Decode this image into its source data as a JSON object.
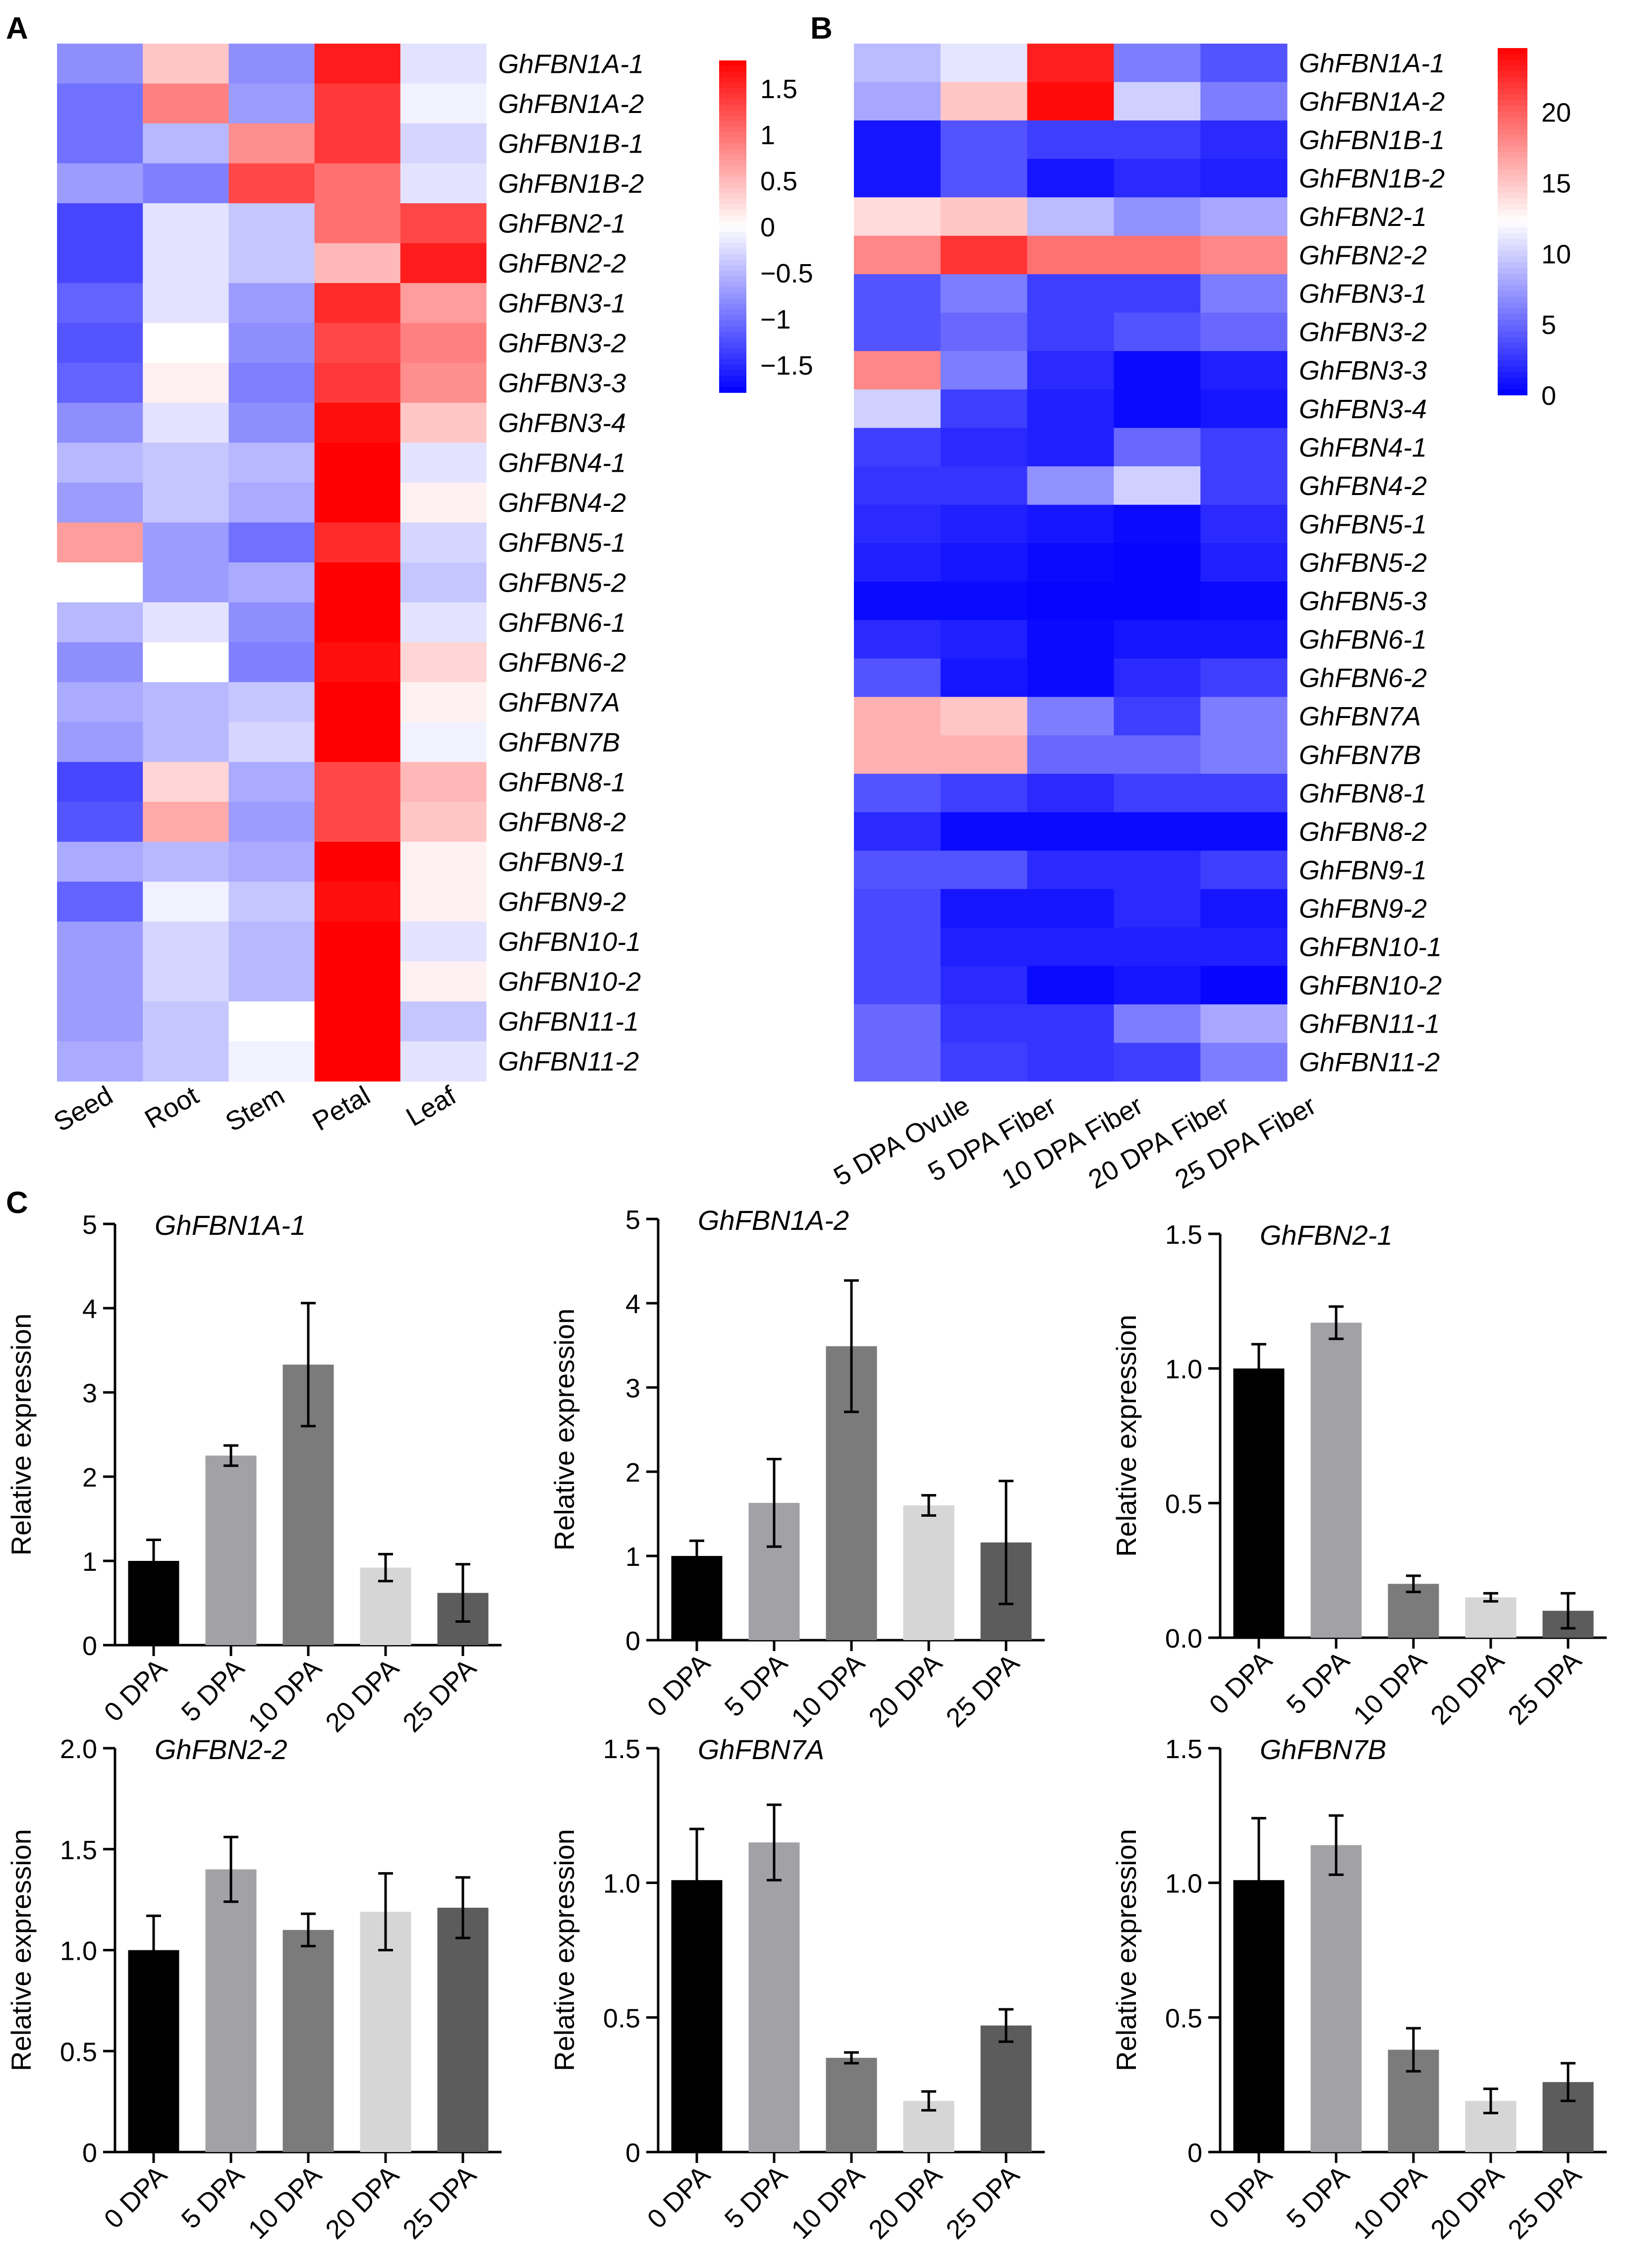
{
  "chart_data": [
    {
      "panel": "A",
      "type": "heatmap",
      "title": "",
      "columns": [
        "Seed",
        "Root",
        "Stem",
        "Petal",
        "Leaf"
      ],
      "rows": [
        "GhFBN1A-1",
        "GhFBN1A-2",
        "GhFBN1B-1",
        "GhFBN1B-2",
        "GhFBN2-1",
        "GhFBN2-2",
        "GhFBN3-1",
        "GhFBN3-2",
        "GhFBN3-3",
        "GhFBN3-4",
        "GhFBN4-1",
        "GhFBN4-2",
        "GhFBN5-1",
        "GhFBN5-2",
        "GhFBN6-1",
        "GhFBN6-2",
        "GhFBN7A",
        "GhFBN7B",
        "GhFBN8-1",
        "GhFBN8-2",
        "GhFBN9-1",
        "GhFBN9-2",
        "GhFBN10-1",
        "GhFBN10-2",
        "GhFBN11-1",
        "GhFBN11-2"
      ],
      "values": [
        [
          -0.8,
          0.4,
          -0.8,
          1.6,
          -0.2
        ],
        [
          -1.0,
          0.9,
          -0.7,
          1.4,
          -0.1
        ],
        [
          -1.0,
          -0.5,
          0.8,
          1.4,
          -0.3
        ],
        [
          -0.7,
          -0.9,
          1.3,
          1.0,
          -0.2
        ],
        [
          -1.3,
          -0.2,
          -0.4,
          1.0,
          1.3
        ],
        [
          -1.3,
          -0.2,
          -0.4,
          0.5,
          1.6
        ],
        [
          -1.1,
          -0.2,
          -0.7,
          1.5,
          0.7
        ],
        [
          -1.2,
          0.0,
          -0.8,
          1.3,
          0.9
        ],
        [
          -1.1,
          0.1,
          -0.9,
          1.4,
          0.8
        ],
        [
          -0.8,
          -0.2,
          -0.8,
          1.7,
          0.4
        ],
        [
          -0.5,
          -0.4,
          -0.5,
          1.8,
          -0.2
        ],
        [
          -0.7,
          -0.4,
          -0.6,
          1.8,
          0.1
        ],
        [
          0.7,
          -0.7,
          -1.0,
          1.5,
          -0.3
        ],
        [
          0.0,
          -0.7,
          -0.6,
          1.8,
          -0.4
        ],
        [
          -0.5,
          -0.2,
          -0.8,
          1.8,
          -0.2
        ],
        [
          -0.8,
          0.0,
          -0.9,
          1.7,
          0.3
        ],
        [
          -0.6,
          -0.5,
          -0.4,
          1.8,
          0.1
        ],
        [
          -0.7,
          -0.5,
          -0.3,
          1.8,
          -0.1
        ],
        [
          -1.3,
          0.3,
          -0.6,
          1.3,
          0.5
        ],
        [
          -1.2,
          0.6,
          -0.7,
          1.3,
          0.4
        ],
        [
          -0.6,
          -0.5,
          -0.6,
          1.8,
          0.1
        ],
        [
          -1.1,
          -0.1,
          -0.4,
          1.7,
          0.1
        ],
        [
          -0.7,
          -0.3,
          -0.5,
          1.8,
          -0.2
        ],
        [
          -0.7,
          -0.3,
          -0.5,
          1.8,
          0.1
        ],
        [
          -0.7,
          -0.4,
          0.0,
          1.8,
          -0.4
        ],
        [
          -0.6,
          -0.4,
          -0.1,
          1.8,
          -0.2
        ]
      ],
      "colorbar": {
        "min": -1.8,
        "max": 1.8,
        "ticks": [
          1.5,
          1,
          0.5,
          0,
          -0.5,
          -1,
          -1.5
        ],
        "tick_labels": [
          "1.5",
          "1",
          "0.5",
          "0",
          "−0.5",
          "−1",
          "−1.5"
        ]
      },
      "colors": {
        "low": "#0000ff",
        "mid": "#ffffff",
        "high": "#ff0000"
      }
    },
    {
      "panel": "B",
      "type": "heatmap",
      "title": "",
      "columns": [
        "5 DPA Ovule",
        "5 DPA Fiber",
        "10 DPA Fiber",
        "20 DPA Fiber",
        "25 DPA Fiber"
      ],
      "rows": [
        "GhFBN1A-1",
        "GhFBN1A-2",
        "GhFBN1B-1",
        "GhFBN1B-2",
        "GhFBN2-1",
        "GhFBN2-2",
        "GhFBN3-1",
        "GhFBN3-2",
        "GhFBN3-3",
        "GhFBN3-4",
        "GhFBN4-1",
        "GhFBN4-2",
        "GhFBN5-1",
        "GhFBN5-2",
        "GhFBN5-3",
        "GhFBN6-1",
        "GhFBN6-2",
        "GhFBN7A",
        "GhFBN7B",
        "GhFBN8-1",
        "GhFBN8-2",
        "GhFBN9-1",
        "GhFBN9-2",
        "GhFBN10-1",
        "GhFBN10-2",
        "GhFBN11-1",
        "GhFBN11-2"
      ],
      "values": [
        [
          9,
          11,
          23,
          6,
          4
        ],
        [
          8,
          15,
          24,
          10,
          6
        ],
        [
          1,
          4,
          3,
          3,
          2
        ],
        [
          1,
          4,
          1,
          2,
          1.5
        ],
        [
          14,
          15,
          9,
          7,
          8
        ],
        [
          18,
          22,
          19,
          19,
          18
        ],
        [
          4,
          6,
          3,
          3,
          6
        ],
        [
          4,
          5,
          3,
          4,
          5
        ],
        [
          18,
          6,
          2,
          0.5,
          1.5
        ],
        [
          10,
          3,
          1.5,
          0.5,
          1
        ],
        [
          3,
          2,
          1.5,
          5,
          3
        ],
        [
          2.5,
          2.5,
          7,
          10,
          3
        ],
        [
          2,
          1.5,
          1,
          0.5,
          2
        ],
        [
          1.5,
          1,
          0.5,
          0.3,
          1.5
        ],
        [
          0.5,
          0.5,
          0.3,
          0.3,
          0.5
        ],
        [
          2,
          1.5,
          0.5,
          1,
          1
        ],
        [
          4,
          1,
          0.5,
          2,
          3
        ],
        [
          16,
          15,
          6,
          3,
          6
        ],
        [
          16,
          16,
          5,
          5,
          6
        ],
        [
          4,
          3,
          2,
          3,
          3
        ],
        [
          2,
          0.5,
          0.5,
          0.5,
          0.5
        ],
        [
          4,
          4,
          2,
          2,
          3
        ],
        [
          3.5,
          1,
          1,
          2,
          1
        ],
        [
          3.5,
          1.5,
          1.5,
          1.5,
          1.5
        ],
        [
          3.5,
          2,
          0.5,
          1,
          0.3
        ],
        [
          5,
          2.5,
          2.5,
          6,
          8
        ],
        [
          5,
          3,
          2.5,
          3,
          6
        ]
      ],
      "colorbar": {
        "min": 0,
        "max": 24.5,
        "ticks": [
          20,
          15,
          10,
          5,
          0
        ],
        "tick_labels": [
          "20",
          "15",
          "10",
          "5",
          "0"
        ]
      },
      "colors": {
        "low": "#0000ff",
        "mid": "#ffffff",
        "high": "#ff0000"
      }
    },
    {
      "panel": "C",
      "type": "bar",
      "title": "GhFBN1A-1",
      "categories": [
        "0 DPA",
        "5 DPA",
        "10 DPA",
        "20 DPA",
        "25 DPA"
      ],
      "values": [
        1.0,
        2.25,
        3.33,
        0.92,
        0.62
      ],
      "errors": [
        0.25,
        0.12,
        0.73,
        0.16,
        0.34
      ],
      "xlabel": "",
      "ylabel": "Relative expression",
      "ylim": [
        0,
        5
      ],
      "yticks": [
        0,
        1,
        2,
        3,
        4,
        5
      ],
      "ytick_labels": [
        "0",
        "1",
        "2",
        "3",
        "4",
        "5"
      ]
    },
    {
      "panel": "C",
      "type": "bar",
      "title": "GhFBN1A-2",
      "categories": [
        "0 DPA",
        "5 DPA",
        "10 DPA",
        "20 DPA",
        "25 DPA"
      ],
      "values": [
        1.0,
        1.63,
        3.49,
        1.6,
        1.16
      ],
      "errors": [
        0.18,
        0.52,
        0.78,
        0.12,
        0.73
      ],
      "xlabel": "",
      "ylabel": "Relative expression",
      "ylim": [
        0,
        5
      ],
      "yticks": [
        0,
        1,
        2,
        3,
        4,
        5
      ],
      "ytick_labels": [
        "0",
        "1",
        "2",
        "3",
        "4",
        "5"
      ]
    },
    {
      "panel": "C",
      "type": "bar",
      "title": "GhFBN2-1",
      "categories": [
        "0 DPA",
        "5 DPA",
        "10 DPA",
        "20 DPA",
        "25 DPA"
      ],
      "values": [
        1.0,
        1.17,
        0.2,
        0.15,
        0.1
      ],
      "errors": [
        0.09,
        0.06,
        0.03,
        0.015,
        0.065
      ],
      "xlabel": "",
      "ylabel": "Relative expression",
      "ylim": [
        0,
        1.5
      ],
      "yticks": [
        0,
        0.5,
        1.0,
        1.5
      ],
      "ytick_labels": [
        "0.0",
        "0.5",
        "1.0",
        "1.5"
      ]
    },
    {
      "panel": "C",
      "type": "bar",
      "title": "GhFBN2-2",
      "categories": [
        "0 DPA",
        "5 DPA",
        "10 DPA",
        "20 DPA",
        "25 DPA"
      ],
      "values": [
        1.0,
        1.4,
        1.1,
        1.19,
        1.21
      ],
      "errors": [
        0.17,
        0.16,
        0.08,
        0.19,
        0.15
      ],
      "xlabel": "",
      "ylabel": "Relative expression",
      "ylim": [
        0,
        2.0
      ],
      "yticks": [
        0,
        0.5,
        1.0,
        1.5,
        2.0
      ],
      "ytick_labels": [
        "0",
        "0.5",
        "1.0",
        "1.5",
        "2.0"
      ]
    },
    {
      "panel": "C",
      "type": "bar",
      "title": "GhFBN7A",
      "categories": [
        "0 DPA",
        "5 DPA",
        "10 DPA",
        "20 DPA",
        "25 DPA"
      ],
      "values": [
        1.01,
        1.15,
        0.35,
        0.19,
        0.47
      ],
      "errors": [
        0.19,
        0.14,
        0.02,
        0.035,
        0.06
      ],
      "xlabel": "",
      "ylabel": "Relative expression",
      "ylim": [
        0,
        1.5
      ],
      "yticks": [
        0,
        0.5,
        1.0,
        1.5
      ],
      "ytick_labels": [
        "0",
        "0.5",
        "1.0",
        "1.5"
      ]
    },
    {
      "panel": "C",
      "type": "bar",
      "title": "GhFBN7B",
      "categories": [
        "0 DPA",
        "5 DPA",
        "10 DPA",
        "20 DPA",
        "25 DPA"
      ],
      "values": [
        1.01,
        1.14,
        0.38,
        0.19,
        0.26
      ],
      "errors": [
        0.23,
        0.11,
        0.08,
        0.045,
        0.07
      ],
      "xlabel": "",
      "ylabel": "Relative expression",
      "ylim": [
        0,
        1.5
      ],
      "yticks": [
        0,
        0.5,
        1.0,
        1.5
      ],
      "ytick_labels": [
        "0",
        "0.5",
        "1.0",
        "1.5"
      ]
    }
  ],
  "panel_labels": [
    "A",
    "B",
    "C"
  ],
  "bar_colors": [
    "#000000",
    "#a2a1a6",
    "#7b7b7b",
    "#d6d6d6",
    "#5c5c5c"
  ]
}
